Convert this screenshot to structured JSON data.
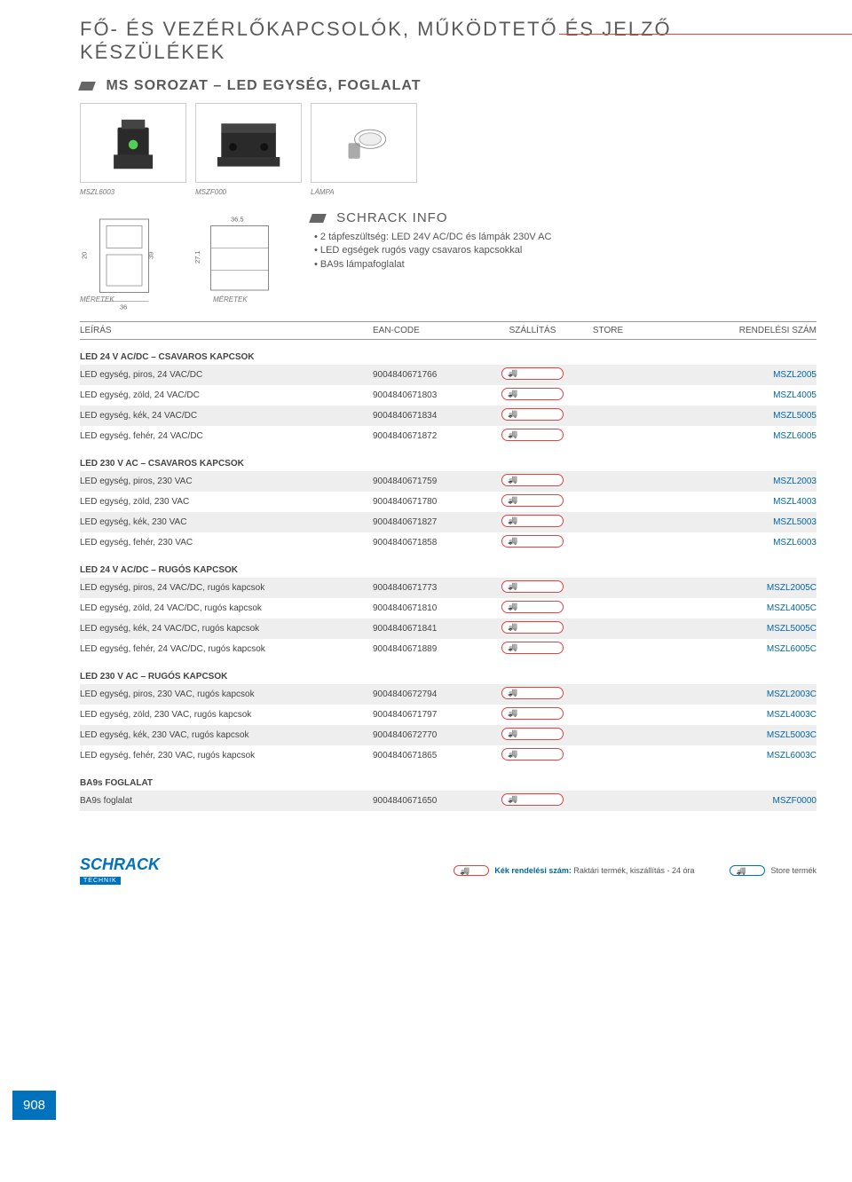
{
  "page_title": "FŐ- ÉS VEZÉRLŐKAPCSOLÓK, MŰKÖDTETŐ ÉS JELZŐ KÉSZÜLÉKEK",
  "subtitle": "MS SOROZAT – LED EGYSÉG, FOGLALAT",
  "captions": [
    "MSZL6003",
    "MSZF000",
    "LÁMPA"
  ],
  "info_title": "SCHRACK INFO",
  "info_items": [
    "2 tápfeszültség: LED 24V AC/DC és lámpák 230V AC",
    "LED egségek rugós vagy csavaros kapcsokkal",
    "BA9s lámpafoglalat"
  ],
  "dim_labels": {
    "a": "36",
    "b": "39",
    "c": "20",
    "d": "36.5",
    "e": "27.1"
  },
  "meretek_label": "MÉRETEK",
  "table_headers": {
    "desc": "LEÍRÁS",
    "ean": "EAN-CODE",
    "ship": "SZÁLLÍTÁS",
    "store": "STORE",
    "order": "RENDELÉSI SZÁM"
  },
  "groups": [
    {
      "title": "LED 24 V AC/DC – CSAVAROS KAPCSOK",
      "rows": [
        {
          "desc": "LED egység, piros, 24 VAC/DC",
          "ean": "9004840671766",
          "order": "MSZL2005",
          "shade": true
        },
        {
          "desc": "LED egység, zöld, 24 VAC/DC",
          "ean": "9004840671803",
          "order": "MSZL4005",
          "shade": false
        },
        {
          "desc": "LED egység, kék, 24 VAC/DC",
          "ean": "9004840671834",
          "order": "MSZL5005",
          "shade": true
        },
        {
          "desc": "LED egység, fehér, 24 VAC/DC",
          "ean": "9004840671872",
          "order": "MSZL6005",
          "shade": false
        }
      ]
    },
    {
      "title": "LED 230 V AC – CSAVAROS KAPCSOK",
      "rows": [
        {
          "desc": "LED egység, piros, 230 VAC",
          "ean": "9004840671759",
          "order": "MSZL2003",
          "shade": true
        },
        {
          "desc": "LED egység, zöld, 230 VAC",
          "ean": "9004840671780",
          "order": "MSZL4003",
          "shade": false
        },
        {
          "desc": "LED egység, kék, 230 VAC",
          "ean": "9004840671827",
          "order": "MSZL5003",
          "shade": true
        },
        {
          "desc": "LED egység, fehér, 230 VAC",
          "ean": "9004840671858",
          "order": "MSZL6003",
          "shade": false
        }
      ]
    },
    {
      "title": "LED 24 V AC/DC – RUGÓS KAPCSOK",
      "rows": [
        {
          "desc": "LED egység, piros, 24 VAC/DC, rugós kapcsok",
          "ean": "9004840671773",
          "order": "MSZL2005C",
          "shade": true
        },
        {
          "desc": "LED egység, zöld, 24 VAC/DC, rugós kapcsok",
          "ean": "9004840671810",
          "order": "MSZL4005C",
          "shade": false
        },
        {
          "desc": "LED egység, kék, 24 VAC/DC, rugós kapcsok",
          "ean": "9004840671841",
          "order": "MSZL5005C",
          "shade": true
        },
        {
          "desc": "LED egység, fehér, 24 VAC/DC, rugós kapcsok",
          "ean": "9004840671889",
          "order": "MSZL6005C",
          "shade": false
        }
      ]
    },
    {
      "title": "LED 230 V AC – RUGÓS KAPCSOK",
      "rows": [
        {
          "desc": "LED egység, piros, 230 VAC, rugós kapcsok",
          "ean": "9004840672794",
          "order": "MSZL2003C",
          "shade": true
        },
        {
          "desc": "LED egység, zöld, 230 VAC, rugós kapcsok",
          "ean": "9004840671797",
          "order": "MSZL4003C",
          "shade": false
        },
        {
          "desc": "LED egység, kék, 230 VAC, rugós kapcsok",
          "ean": "9004840672770",
          "order": "MSZL5003C",
          "shade": true
        },
        {
          "desc": "LED egység, fehér, 230 VAC, rugós kapcsok",
          "ean": "9004840671865",
          "order": "MSZL6003C",
          "shade": false
        }
      ]
    },
    {
      "title": "BA9s FOGLALAT",
      "rows": [
        {
          "desc": "BA9s foglalat",
          "ean": "9004840671650",
          "order": "MSZF0000",
          "shade": true
        }
      ]
    }
  ],
  "page_number": "908",
  "logo_text": "SCHRACK",
  "logo_sub": "TECHNIK",
  "footer_note_prefix": "Kék rendelési szám:",
  "footer_note": " Raktári termék, kiszállítás - 24 óra",
  "footer_store": "Store termék",
  "colors": {
    "accent_red": "#d44",
    "accent_blue": "#0072bc",
    "link_blue": "#0066aa",
    "shade_bg": "#eeeeee",
    "text_gray": "#555555",
    "border_gray": "#999999"
  }
}
